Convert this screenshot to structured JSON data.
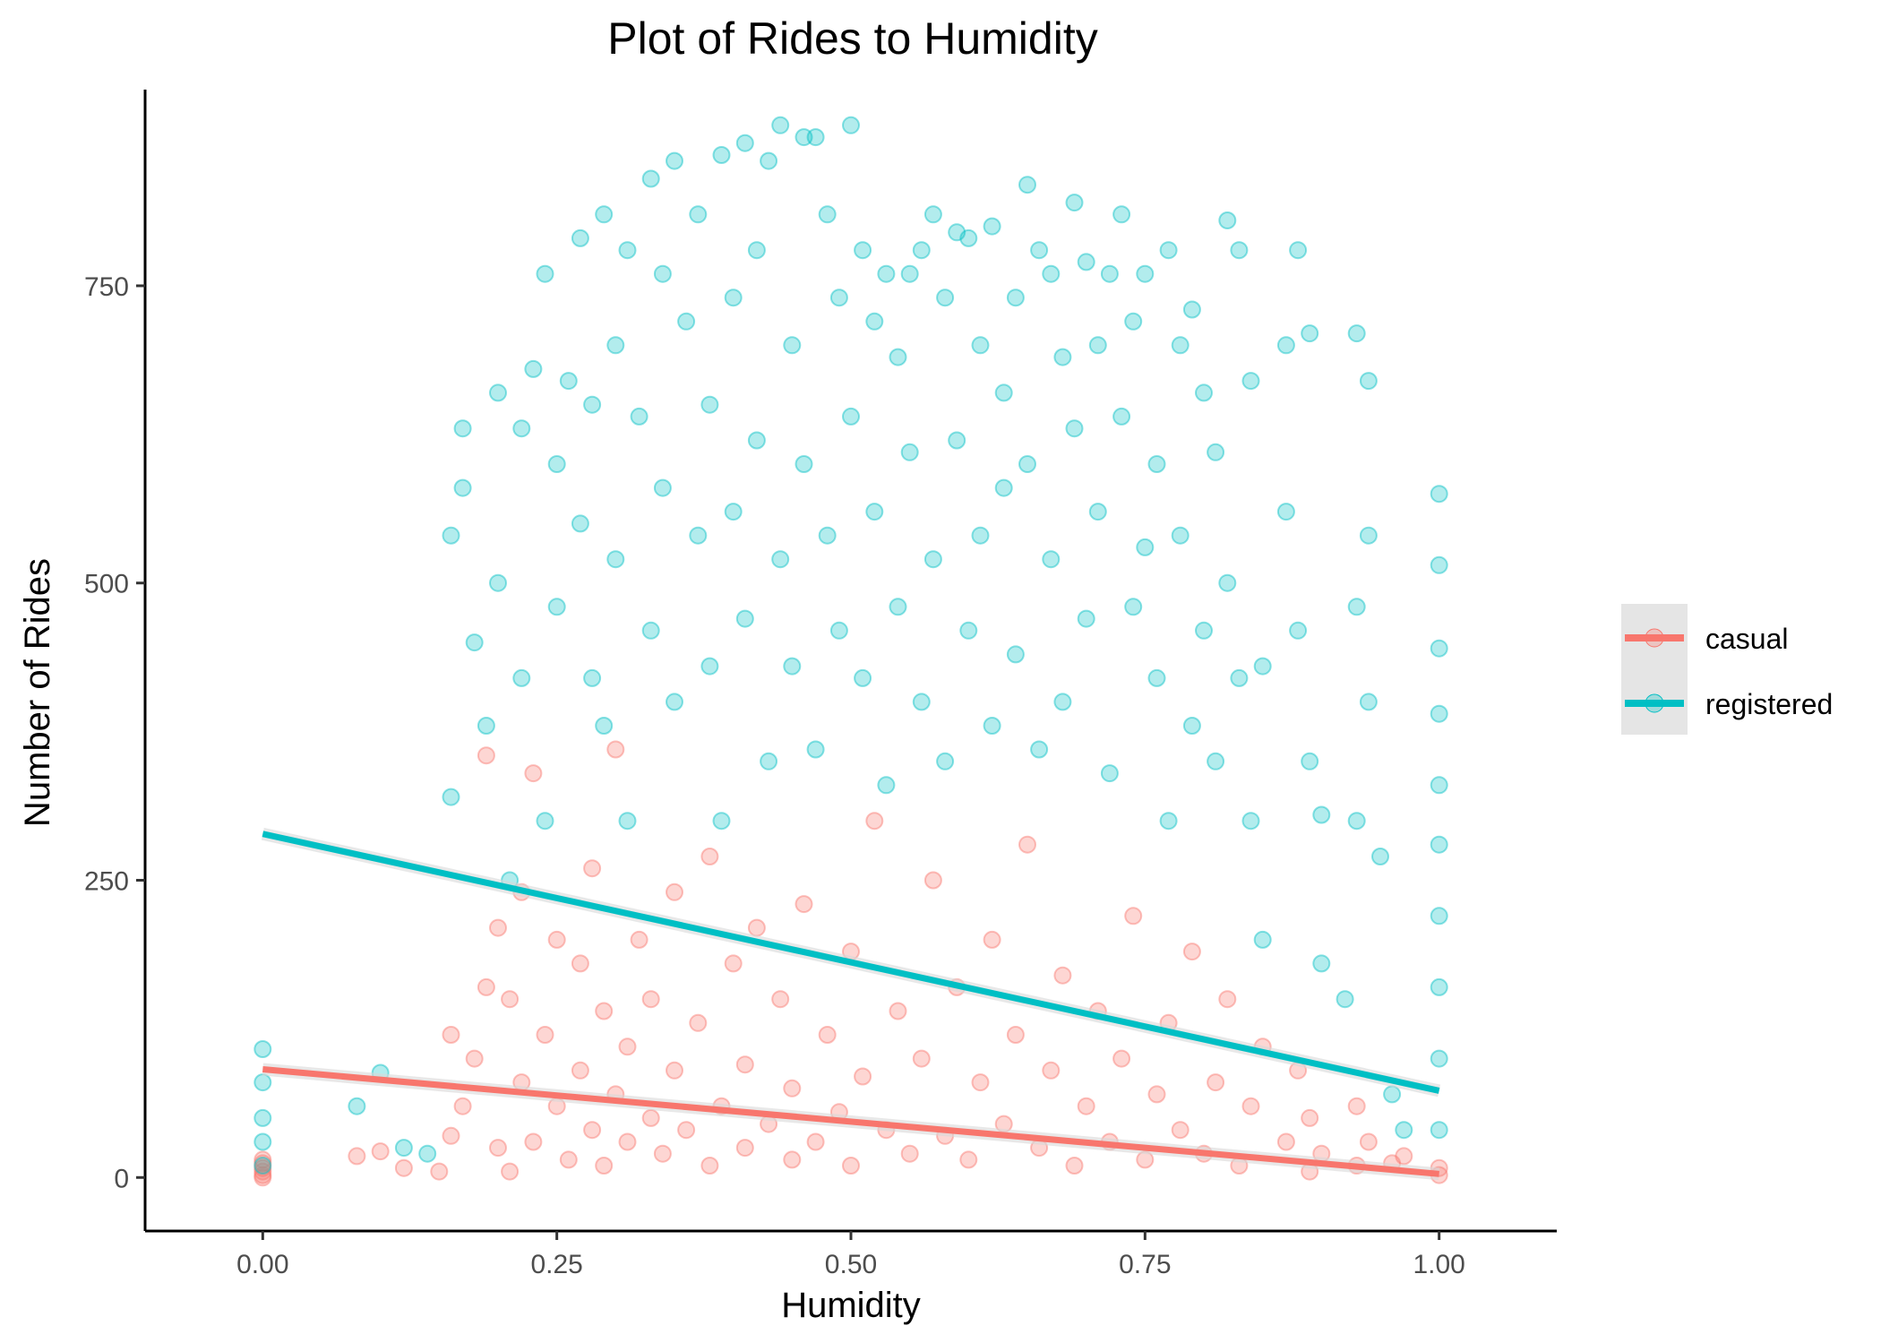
{
  "chart_data": {
    "type": "scatter",
    "title": "Plot of Rides to Humidity",
    "xlabel": "Humidity",
    "ylabel": "Number of Rides",
    "xlim": [
      -0.1,
      1.1
    ],
    "ylim": [
      -45,
      915
    ],
    "x_ticks": [
      0,
      0.25,
      0.5,
      0.75,
      1
    ],
    "x_tick_labels": [
      "0.00",
      "0.25",
      "0.50",
      "0.75",
      "1.00"
    ],
    "y_ticks": [
      0,
      250,
      500,
      750
    ],
    "y_tick_labels": [
      "0",
      "250",
      "500",
      "750"
    ],
    "grid": false,
    "legend_position": "right",
    "series": [
      {
        "name": "casual",
        "color": "#F8766D",
        "trend": {
          "x": [
            0,
            1
          ],
          "y": [
            91,
            3
          ]
        },
        "points": [
          [
            0,
            0
          ],
          [
            0,
            2
          ],
          [
            0,
            5
          ],
          [
            0,
            8
          ],
          [
            0,
            12
          ],
          [
            0,
            15
          ],
          [
            0.08,
            18
          ],
          [
            0.1,
            22
          ],
          [
            0.12,
            8
          ],
          [
            0.15,
            5
          ],
          [
            0.16,
            35
          ],
          [
            0.16,
            120
          ],
          [
            0.17,
            60
          ],
          [
            0.18,
            100
          ],
          [
            0.19,
            160
          ],
          [
            0.19,
            355
          ],
          [
            0.2,
            25
          ],
          [
            0.2,
            210
          ],
          [
            0.21,
            5
          ],
          [
            0.21,
            150
          ],
          [
            0.22,
            80
          ],
          [
            0.22,
            240
          ],
          [
            0.23,
            340
          ],
          [
            0.23,
            30
          ],
          [
            0.24,
            120
          ],
          [
            0.25,
            60
          ],
          [
            0.25,
            200
          ],
          [
            0.26,
            15
          ],
          [
            0.27,
            90
          ],
          [
            0.27,
            180
          ],
          [
            0.28,
            40
          ],
          [
            0.28,
            260
          ],
          [
            0.29,
            10
          ],
          [
            0.29,
            140
          ],
          [
            0.3,
            70
          ],
          [
            0.3,
            360
          ],
          [
            0.31,
            30
          ],
          [
            0.31,
            110
          ],
          [
            0.32,
            200
          ],
          [
            0.33,
            50
          ],
          [
            0.33,
            150
          ],
          [
            0.34,
            20
          ],
          [
            0.35,
            90
          ],
          [
            0.35,
            240
          ],
          [
            0.36,
            40
          ],
          [
            0.37,
            130
          ],
          [
            0.38,
            10
          ],
          [
            0.38,
            270
          ],
          [
            0.39,
            60
          ],
          [
            0.4,
            180
          ],
          [
            0.41,
            25
          ],
          [
            0.41,
            95
          ],
          [
            0.42,
            210
          ],
          [
            0.43,
            45
          ],
          [
            0.44,
            150
          ],
          [
            0.45,
            15
          ],
          [
            0.45,
            75
          ],
          [
            0.46,
            230
          ],
          [
            0.47,
            30
          ],
          [
            0.48,
            120
          ],
          [
            0.49,
            55
          ],
          [
            0.5,
            190
          ],
          [
            0.5,
            10
          ],
          [
            0.51,
            85
          ],
          [
            0.52,
            300
          ],
          [
            0.53,
            40
          ],
          [
            0.54,
            140
          ],
          [
            0.55,
            20
          ],
          [
            0.56,
            100
          ],
          [
            0.57,
            250
          ],
          [
            0.58,
            35
          ],
          [
            0.59,
            160
          ],
          [
            0.6,
            15
          ],
          [
            0.61,
            80
          ],
          [
            0.62,
            200
          ],
          [
            0.63,
            45
          ],
          [
            0.64,
            120
          ],
          [
            0.65,
            280
          ],
          [
            0.66,
            25
          ],
          [
            0.67,
            90
          ],
          [
            0.68,
            170
          ],
          [
            0.69,
            10
          ],
          [
            0.7,
            60
          ],
          [
            0.71,
            140
          ],
          [
            0.72,
            30
          ],
          [
            0.73,
            100
          ],
          [
            0.74,
            220
          ],
          [
            0.75,
            15
          ],
          [
            0.76,
            70
          ],
          [
            0.77,
            130
          ],
          [
            0.78,
            40
          ],
          [
            0.79,
            190
          ],
          [
            0.8,
            20
          ],
          [
            0.81,
            80
          ],
          [
            0.82,
            150
          ],
          [
            0.83,
            10
          ],
          [
            0.84,
            60
          ],
          [
            0.85,
            110
          ],
          [
            0.87,
            30
          ],
          [
            0.88,
            90
          ],
          [
            0.89,
            5
          ],
          [
            0.89,
            50
          ],
          [
            0.9,
            20
          ],
          [
            0.93,
            10
          ],
          [
            0.93,
            60
          ],
          [
            0.94,
            30
          ],
          [
            0.96,
            12
          ],
          [
            0.97,
            18
          ],
          [
            1.0,
            2
          ],
          [
            1.0,
            8
          ]
        ]
      },
      {
        "name": "registered",
        "color": "#00BFC4",
        "trend": {
          "x": [
            0,
            1
          ],
          "y": [
            289,
            73
          ]
        },
        "points": [
          [
            0,
            10
          ],
          [
            0,
            30
          ],
          [
            0,
            50
          ],
          [
            0,
            80
          ],
          [
            0,
            108
          ],
          [
            0.08,
            60
          ],
          [
            0.1,
            88
          ],
          [
            0.12,
            25
          ],
          [
            0.14,
            20
          ],
          [
            0.16,
            320
          ],
          [
            0.16,
            540
          ],
          [
            0.17,
            630
          ],
          [
            0.17,
            580
          ],
          [
            0.18,
            450
          ],
          [
            0.19,
            380
          ],
          [
            0.2,
            660
          ],
          [
            0.2,
            500
          ],
          [
            0.21,
            250
          ],
          [
            0.22,
            630
          ],
          [
            0.22,
            420
          ],
          [
            0.23,
            680
          ],
          [
            0.24,
            760
          ],
          [
            0.24,
            300
          ],
          [
            0.25,
            600
          ],
          [
            0.25,
            480
          ],
          [
            0.26,
            670
          ],
          [
            0.27,
            550
          ],
          [
            0.27,
            790
          ],
          [
            0.28,
            420
          ],
          [
            0.28,
            650
          ],
          [
            0.29,
            810
          ],
          [
            0.29,
            380
          ],
          [
            0.3,
            700
          ],
          [
            0.3,
            520
          ],
          [
            0.31,
            780
          ],
          [
            0.31,
            300
          ],
          [
            0.32,
            640
          ],
          [
            0.33,
            840
          ],
          [
            0.33,
            460
          ],
          [
            0.34,
            760
          ],
          [
            0.34,
            580
          ],
          [
            0.35,
            855
          ],
          [
            0.35,
            400
          ],
          [
            0.36,
            720
          ],
          [
            0.37,
            540
          ],
          [
            0.37,
            810
          ],
          [
            0.38,
            650
          ],
          [
            0.38,
            430
          ],
          [
            0.39,
            860
          ],
          [
            0.39,
            300
          ],
          [
            0.4,
            740
          ],
          [
            0.4,
            560
          ],
          [
            0.41,
            870
          ],
          [
            0.41,
            470
          ],
          [
            0.42,
            780
          ],
          [
            0.42,
            620
          ],
          [
            0.43,
            855
          ],
          [
            0.43,
            350
          ],
          [
            0.44,
            885
          ],
          [
            0.44,
            520
          ],
          [
            0.45,
            700
          ],
          [
            0.45,
            430
          ],
          [
            0.46,
            875
          ],
          [
            0.46,
            600
          ],
          [
            0.47,
            875
          ],
          [
            0.47,
            360
          ],
          [
            0.48,
            810
          ],
          [
            0.48,
            540
          ],
          [
            0.49,
            740
          ],
          [
            0.49,
            460
          ],
          [
            0.5,
            885
          ],
          [
            0.5,
            640
          ],
          [
            0.51,
            780
          ],
          [
            0.51,
            420
          ],
          [
            0.52,
            720
          ],
          [
            0.52,
            560
          ],
          [
            0.53,
            760
          ],
          [
            0.53,
            330
          ],
          [
            0.54,
            690
          ],
          [
            0.54,
            480
          ],
          [
            0.55,
            760
          ],
          [
            0.55,
            610
          ],
          [
            0.56,
            780
          ],
          [
            0.56,
            400
          ],
          [
            0.57,
            810
          ],
          [
            0.57,
            520
          ],
          [
            0.58,
            740
          ],
          [
            0.58,
            350
          ],
          [
            0.59,
            795
          ],
          [
            0.59,
            620
          ],
          [
            0.6,
            790
          ],
          [
            0.6,
            460
          ],
          [
            0.61,
            700
          ],
          [
            0.61,
            540
          ],
          [
            0.62,
            800
          ],
          [
            0.62,
            380
          ],
          [
            0.63,
            660
          ],
          [
            0.63,
            580
          ],
          [
            0.64,
            740
          ],
          [
            0.64,
            440
          ],
          [
            0.65,
            835
          ],
          [
            0.65,
            600
          ],
          [
            0.66,
            780
          ],
          [
            0.66,
            360
          ],
          [
            0.67,
            760
          ],
          [
            0.67,
            520
          ],
          [
            0.68,
            690
          ],
          [
            0.68,
            400
          ],
          [
            0.69,
            820
          ],
          [
            0.69,
            630
          ],
          [
            0.7,
            770
          ],
          [
            0.7,
            470
          ],
          [
            0.71,
            700
          ],
          [
            0.71,
            560
          ],
          [
            0.72,
            760
          ],
          [
            0.72,
            340
          ],
          [
            0.73,
            810
          ],
          [
            0.73,
            640
          ],
          [
            0.74,
            720
          ],
          [
            0.74,
            480
          ],
          [
            0.75,
            760
          ],
          [
            0.75,
            530
          ],
          [
            0.76,
            600
          ],
          [
            0.76,
            420
          ],
          [
            0.77,
            780
          ],
          [
            0.77,
            300
          ],
          [
            0.78,
            700
          ],
          [
            0.78,
            540
          ],
          [
            0.79,
            730
          ],
          [
            0.79,
            380
          ],
          [
            0.8,
            660
          ],
          [
            0.8,
            460
          ],
          [
            0.81,
            610
          ],
          [
            0.81,
            350
          ],
          [
            0.82,
            805
          ],
          [
            0.82,
            500
          ],
          [
            0.83,
            780
          ],
          [
            0.83,
            420
          ],
          [
            0.84,
            670
          ],
          [
            0.84,
            300
          ],
          [
            0.85,
            430
          ],
          [
            0.85,
            200
          ],
          [
            0.87,
            700
          ],
          [
            0.87,
            560
          ],
          [
            0.88,
            780
          ],
          [
            0.88,
            460
          ],
          [
            0.89,
            710
          ],
          [
            0.89,
            350
          ],
          [
            0.9,
            305
          ],
          [
            0.9,
            180
          ],
          [
            0.92,
            150
          ],
          [
            0.93,
            710
          ],
          [
            0.93,
            480
          ],
          [
            0.93,
            300
          ],
          [
            0.94,
            670
          ],
          [
            0.94,
            540
          ],
          [
            0.94,
            400
          ],
          [
            0.95,
            270
          ],
          [
            0.96,
            70
          ],
          [
            0.97,
            40
          ],
          [
            1.0,
            575
          ],
          [
            1.0,
            515
          ],
          [
            1.0,
            445
          ],
          [
            1.0,
            390
          ],
          [
            1.0,
            330
          ],
          [
            1.0,
            280
          ],
          [
            1.0,
            220
          ],
          [
            1.0,
            160
          ],
          [
            1.0,
            100
          ],
          [
            1.0,
            40
          ]
        ]
      }
    ]
  }
}
